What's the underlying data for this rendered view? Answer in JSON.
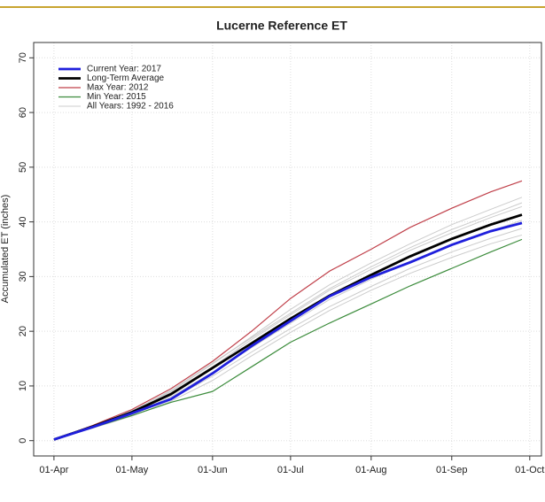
{
  "chart_data": {
    "type": "line",
    "title": "Lucerne Reference ET",
    "y_label": "Accumulated ET (inches)",
    "x": [
      0,
      15,
      30,
      45,
      61,
      76,
      91,
      106,
      122,
      137,
      153,
      168,
      180
    ],
    "series": [
      {
        "name": "Current Year: 2017",
        "color": "#1f1fdc",
        "values": [
          0.2,
          2.5,
          5.0,
          7.6,
          12.3,
          17.3,
          21.9,
          26.4,
          29.9,
          32.6,
          35.8,
          38.3,
          39.8
        ]
      },
      {
        "name": "Long-Term Average",
        "color": "#000000",
        "values": [
          0.2,
          2.6,
          5.2,
          8.5,
          13.3,
          17.8,
          22.3,
          26.5,
          30.3,
          33.7,
          36.9,
          39.5,
          41.3
        ]
      },
      {
        "name": "Max Year: 2012",
        "color": "#c0404a",
        "values": [
          0.2,
          2.8,
          5.7,
          9.5,
          14.5,
          20.0,
          26.0,
          31.0,
          35.0,
          39.0,
          42.5,
          45.5,
          47.5
        ]
      },
      {
        "name": "Min Year: 2015",
        "color": "#3c8c3c",
        "values": [
          0.2,
          2.4,
          4.6,
          7.0,
          9.0,
          13.5,
          18.0,
          21.5,
          25.0,
          28.3,
          31.5,
          34.5,
          36.8
        ]
      }
    ],
    "background_series": {
      "name": "All Years: 1992 - 2016",
      "color": "#cccccc",
      "lines": [
        [
          0.2,
          2.7,
          5.5,
          9.0,
          14.0,
          19.0,
          24.0,
          28.5,
          32.5,
          36.0,
          39.5,
          42.3,
          44.5
        ],
        [
          0.2,
          2.6,
          5.3,
          8.8,
          13.5,
          18.5,
          23.0,
          27.5,
          31.3,
          34.8,
          38.0,
          40.8,
          42.8
        ],
        [
          0.2,
          2.5,
          5.0,
          8.0,
          12.5,
          17.0,
          21.5,
          25.8,
          29.5,
          32.8,
          35.8,
          38.3,
          40.3
        ],
        [
          0.2,
          2.4,
          4.8,
          7.6,
          11.8,
          16.2,
          20.5,
          24.5,
          28.2,
          31.5,
          34.5,
          37.0,
          38.8
        ],
        [
          0.2,
          2.6,
          5.4,
          9.2,
          14.2,
          18.8,
          23.3,
          27.8,
          31.8,
          35.3,
          38.6,
          41.3,
          43.5
        ],
        [
          0.2,
          2.3,
          4.5,
          7.2,
          11.0,
          15.5,
          19.8,
          23.8,
          27.5,
          30.6,
          33.5,
          36.0,
          37.6
        ]
      ]
    },
    "xlim": [
      -7.8,
      187.5
    ],
    "ylim": [
      -2.8,
      72.8
    ],
    "xticks": [
      {
        "value": 0,
        "label": "01-Apr"
      },
      {
        "value": 30,
        "label": "01-May"
      },
      {
        "value": 61,
        "label": "01-Jun"
      },
      {
        "value": 91,
        "label": "01-Jul"
      },
      {
        "value": 122,
        "label": "01-Aug"
      },
      {
        "value": 153,
        "label": "01-Sep"
      },
      {
        "value": 183,
        "label": "01-Oct"
      }
    ],
    "yticks": [
      0,
      10,
      20,
      30,
      40,
      50,
      60,
      70
    ],
    "grid": true,
    "legend": "top-left"
  }
}
